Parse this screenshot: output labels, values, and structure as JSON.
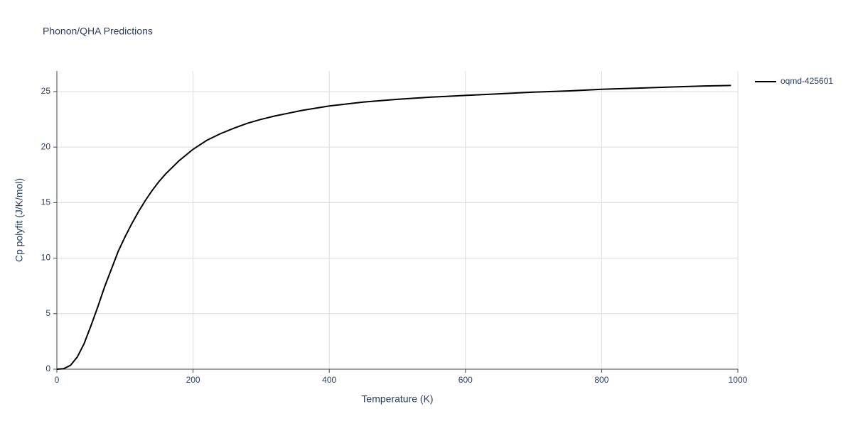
{
  "chart_data": {
    "type": "line",
    "title": "Phonon/QHA Predictions",
    "x_label": "Temperature (K)",
    "y_label": "Cp polyfit (J/K/mol)",
    "x": [
      0,
      10,
      20,
      30,
      40,
      50,
      60,
      70,
      80,
      90,
      100,
      110,
      120,
      130,
      140,
      150,
      160,
      170,
      180,
      190,
      200,
      220,
      240,
      260,
      280,
      300,
      320,
      340,
      360,
      380,
      400,
      450,
      500,
      550,
      600,
      650,
      700,
      750,
      800,
      850,
      900,
      950,
      990
    ],
    "series": [
      {
        "name": "oqmd-425601",
        "color": "#000000",
        "values": [
          0,
          0.05,
          0.35,
          1.1,
          2.3,
          3.9,
          5.6,
          7.4,
          9.0,
          10.6,
          11.9,
          13.1,
          14.2,
          15.2,
          16.1,
          16.9,
          17.6,
          18.2,
          18.8,
          19.3,
          19.8,
          20.6,
          21.2,
          21.7,
          22.15,
          22.5,
          22.8,
          23.05,
          23.3,
          23.5,
          23.7,
          24.05,
          24.3,
          24.5,
          24.65,
          24.8,
          24.95,
          25.05,
          25.2,
          25.3,
          25.4,
          25.5,
          25.55
        ]
      }
    ],
    "xlim": [
      0,
      1000
    ],
    "xticks": [
      0,
      200,
      400,
      600,
      800,
      1000
    ],
    "ylim": [
      0,
      26.85
    ],
    "yticks": [
      0,
      5,
      10,
      15,
      20,
      25
    ],
    "grid": true,
    "legend": "right"
  }
}
